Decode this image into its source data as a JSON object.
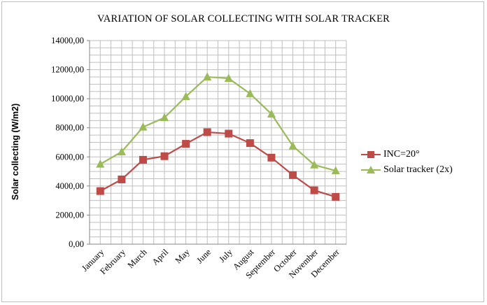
{
  "chart_data": {
    "type": "line",
    "title": "VARIATION OF SOLAR COLLECTING WITH SOLAR TRACKER",
    "xlabel": "",
    "ylabel": "Solar collecting (W/m2)",
    "categories": [
      "January",
      "February",
      "March",
      "April",
      "May",
      "June",
      "July",
      "August",
      "September",
      "October",
      "November",
      "December"
    ],
    "ylim": [
      0,
      14000
    ],
    "yticks": [
      "0,00",
      "2000,00",
      "4000,00",
      "6000,00",
      "8000,00",
      "10000,00",
      "12000,00",
      "14000,00"
    ],
    "grid": true,
    "legend_position": "right",
    "series": [
      {
        "name": "INC=20°",
        "color": "#be4b48",
        "marker": "square",
        "values": [
          3650,
          4450,
          5800,
          6050,
          6900,
          7700,
          7600,
          6950,
          5950,
          4750,
          3700,
          3250
        ]
      },
      {
        "name": "Solar tracker (2x)",
        "color": "#9bbb59",
        "marker": "triangle",
        "values": [
          5500,
          6350,
          8050,
          8700,
          10150,
          11500,
          11400,
          10350,
          8950,
          6750,
          5450,
          5050
        ]
      }
    ]
  }
}
